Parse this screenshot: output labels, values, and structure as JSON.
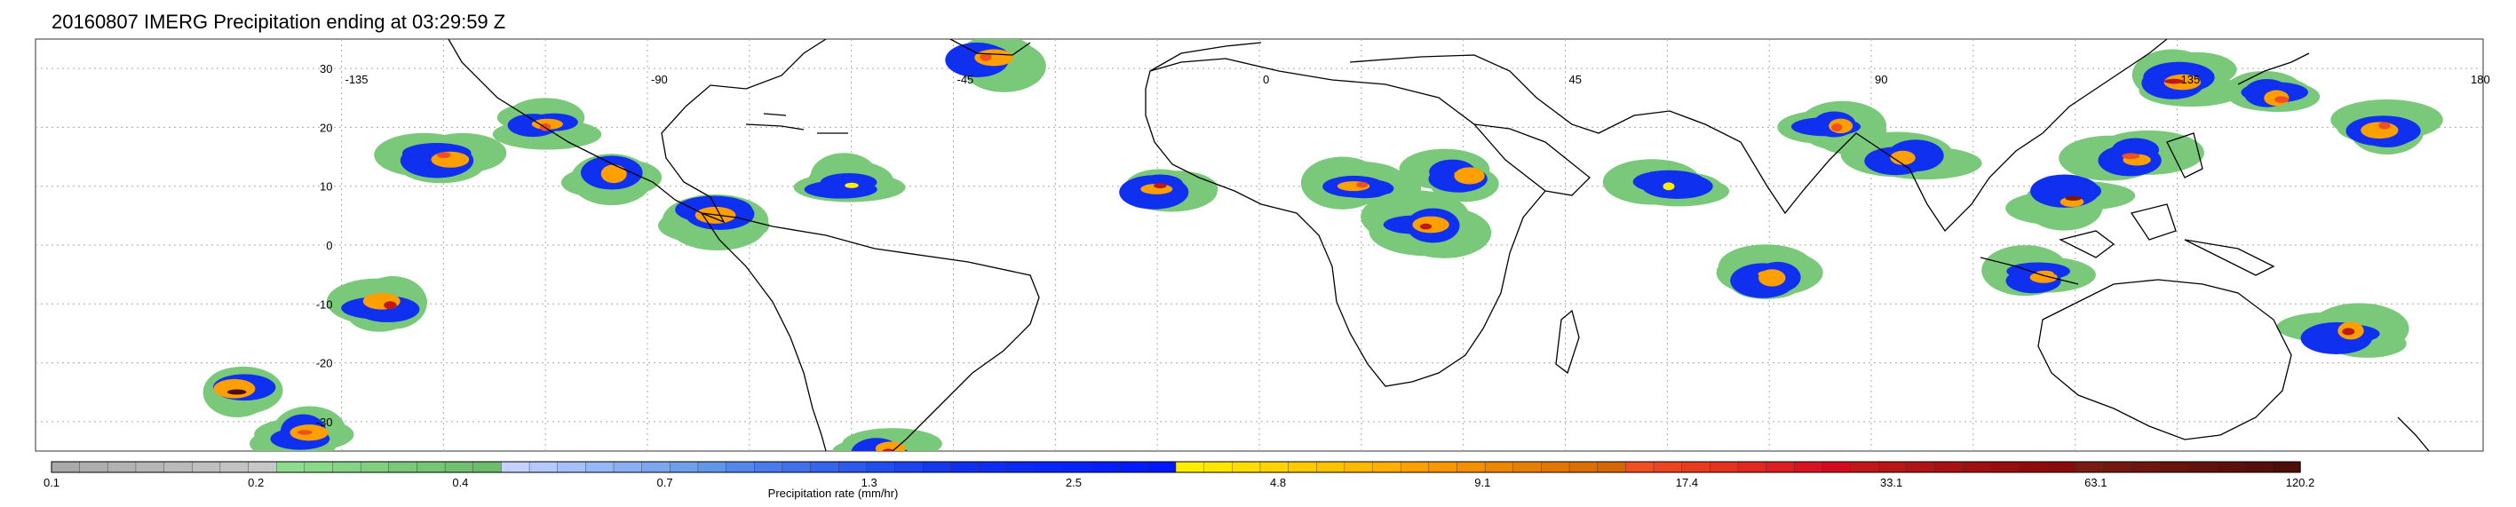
{
  "title": "20160807 IMERG Precipitation ending at 03:29:59 Z",
  "map": {
    "lon_labels": [
      "-135",
      "-90",
      "-45",
      "0",
      "45",
      "90",
      "135",
      "180"
    ],
    "lat_labels": [
      "30",
      "20",
      "10",
      "0",
      "-10",
      "-20",
      "-30"
    ],
    "gridlines": "dotted",
    "coastline_color": "#000000"
  },
  "colorbar": {
    "title": "Precipitation rate (mm/hr)",
    "tick_labels": [
      "0.1",
      "0.2",
      "0.4",
      "0.7",
      "1.3",
      "2.5",
      "4.8",
      "9.1",
      "17.4",
      "33.1",
      "63.1",
      "120.2"
    ],
    "colors": [
      "#a9a9a9",
      "#adadad",
      "#b2b2b2",
      "#b6b6b6",
      "#bababa",
      "#bfbfbf",
      "#c3c3c3",
      "#c7c7c7",
      "#8fdc8f",
      "#8ad88a",
      "#85d485",
      "#80d080",
      "#7ac97a",
      "#75c575",
      "#70c070",
      "#6bbc6b",
      "#c4d2ff",
      "#b3c9ff",
      "#a5c0fb",
      "#97b8f7",
      "#8ab0f3",
      "#7ca7ef",
      "#6e9feb",
      "#6197e7",
      "#5486ec",
      "#4a7bec",
      "#4070ec",
      "#3665ec",
      "#2c5aec",
      "#224fec",
      "#1a44ec",
      "#1339ec",
      "#1030f0",
      "#0d2df2",
      "#0a2af4",
      "#0826f6",
      "#0623f8",
      "#041ffa",
      "#021bfc",
      "#0018ff",
      "#ffee00",
      "#ffe600",
      "#ffdd00",
      "#ffd400",
      "#ffcb00",
      "#ffc200",
      "#ffb900",
      "#ffb000",
      "#ff9f00",
      "#f99700",
      "#f38f00",
      "#ed8700",
      "#e77f00",
      "#e17700",
      "#db6f00",
      "#d56700",
      "#f05020",
      "#ec4620",
      "#e83c20",
      "#e43220",
      "#e02820",
      "#dc1e20",
      "#d81420",
      "#d40a20",
      "#c01818",
      "#b81616",
      "#b01414",
      "#a81212",
      "#a01010",
      "#980e0e",
      "#900c0c",
      "#880a0a",
      "#7a1a10",
      "#74180f",
      "#6e160e",
      "#68140d",
      "#62120c",
      "#5c100b",
      "#560e0a",
      "#500c09"
    ]
  },
  "precip_cells": [
    {
      "lon": -150,
      "lat": -25,
      "rate": 63.1
    },
    {
      "lon": -140,
      "lat": -32,
      "rate": 9.1
    },
    {
      "lon": -120,
      "lat": 15,
      "rate": 9.1
    },
    {
      "lon": -128,
      "lat": -10,
      "rate": 17.4
    },
    {
      "lon": -105,
      "lat": 20,
      "rate": 9.1
    },
    {
      "lon": -95,
      "lat": 12,
      "rate": 4.8
    },
    {
      "lon": -80,
      "lat": 5,
      "rate": 4.8
    },
    {
      "lon": -55,
      "lat": -35,
      "rate": 17.4
    },
    {
      "lon": -60,
      "lat": 10,
      "rate": 2.5
    },
    {
      "lon": -40,
      "lat": 32,
      "rate": 9.1
    },
    {
      "lon": -15,
      "lat": 10,
      "rate": 17.4
    },
    {
      "lon": 15,
      "lat": 10,
      "rate": 9.1
    },
    {
      "lon": 25,
      "lat": 3,
      "rate": 17.4
    },
    {
      "lon": 30,
      "lat": 12,
      "rate": 4.8
    },
    {
      "lon": 85,
      "lat": 20,
      "rate": 9.1
    },
    {
      "lon": 95,
      "lat": 15,
      "rate": 4.8
    },
    {
      "lon": 120,
      "lat": 8,
      "rate": 33.1
    },
    {
      "lon": 128,
      "lat": 15,
      "rate": 9.1
    },
    {
      "lon": 135,
      "lat": 28,
      "rate": 17.4
    },
    {
      "lon": 150,
      "lat": 25,
      "rate": 9.1
    },
    {
      "lon": 165,
      "lat": 20,
      "rate": 9.1
    },
    {
      "lon": 160,
      "lat": -15,
      "rate": 17.4
    },
    {
      "lon": 115,
      "lat": -5,
      "rate": 4.8
    },
    {
      "lon": 75,
      "lat": -5,
      "rate": 4.8
    },
    {
      "lon": 60,
      "lat": 10,
      "rate": 2.5
    }
  ]
}
